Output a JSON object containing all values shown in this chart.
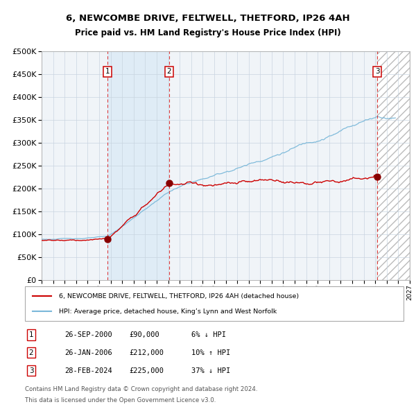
{
  "title1": "6, NEWCOMBE DRIVE, FELTWELL, THETFORD, IP26 4AH",
  "title2": "Price paid vs. HM Land Registry's House Price Index (HPI)",
  "legend_line1": "6, NEWCOMBE DRIVE, FELTWELL, THETFORD, IP26 4AH (detached house)",
  "legend_line2": "HPI: Average price, detached house, King’s Lynn and West Norfolk",
  "table": [
    {
      "num": "1",
      "date": "26-SEP-2000",
      "price": "£90,000",
      "hpi": "6% ↓ HPI"
    },
    {
      "num": "2",
      "date": "26-JAN-2006",
      "price": "£212,000",
      "hpi": "10% ↑ HPI"
    },
    {
      "num": "3",
      "date": "28-FEB-2024",
      "price": "£225,000",
      "hpi": "37% ↓ HPI"
    }
  ],
  "footnote1": "Contains HM Land Registry data © Crown copyright and database right 2024.",
  "footnote2": "This data is licensed under the Open Government Licence v3.0.",
  "sale1_year": 2000.75,
  "sale1_price": 90000,
  "sale2_year": 2006.08,
  "sale2_price": 212000,
  "sale3_year": 2024.16,
  "sale3_price": 225000,
  "hpi_color": "#7ab8d9",
  "property_color": "#cc0000",
  "dot_color": "#880000",
  "ylim": [
    0,
    500000
  ],
  "yticks": [
    0,
    50000,
    100000,
    150000,
    200000,
    250000,
    300000,
    350000,
    400000,
    450000,
    500000
  ],
  "xstart": 1995,
  "xend": 2027,
  "bg_color": "#f0f4f8"
}
